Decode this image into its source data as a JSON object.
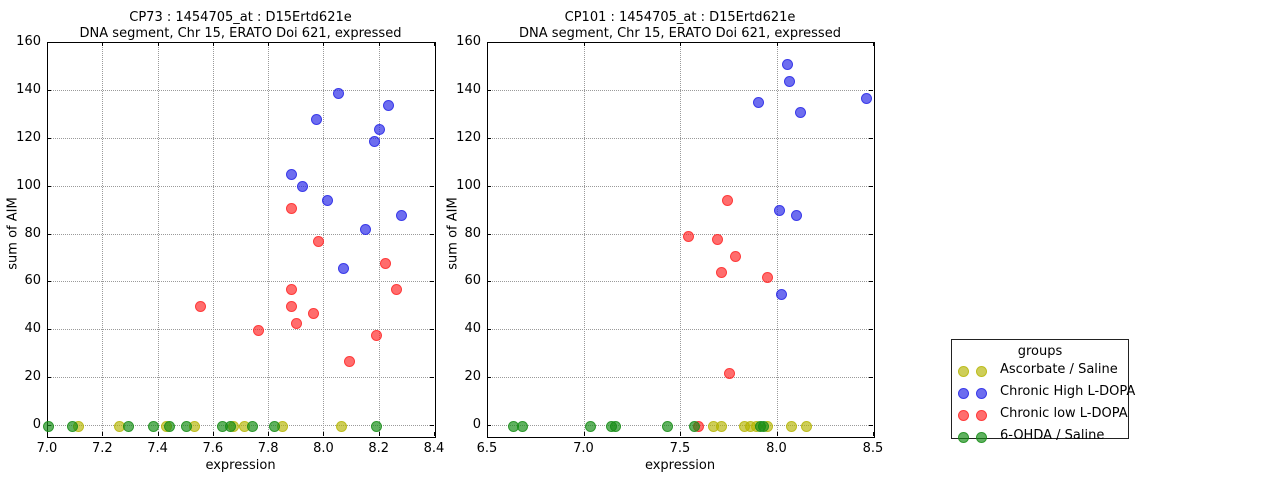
{
  "figure": {
    "background": "#ffffff"
  },
  "legend": {
    "title": "groups",
    "entries": [
      {
        "label": "Ascorbate / Saline",
        "color": "rgba(180,180,0,0.65)"
      },
      {
        "label": "Chronic High L-DOPA",
        "color": "rgba(30,30,230,0.65)"
      },
      {
        "label": "Chronic low L-DOPA",
        "color": "rgba(255,30,30,0.65)"
      },
      {
        "label": "6-OHDA / Saline",
        "color": "rgba(20,140,20,0.68)"
      }
    ]
  },
  "chart_data": [
    {
      "type": "scatter",
      "title_line1": "CP73 : 1454705_at : D15Ertd621e",
      "title_line2": "DNA segment, Chr 15, ERATO Doi 621, expressed",
      "xlabel": "expression",
      "ylabel": "sum of AIM",
      "xlim": [
        7.0,
        8.4
      ],
      "ylim": [
        0,
        160
      ],
      "xticks": [
        7.0,
        7.2,
        7.4,
        7.6,
        7.8,
        8.0,
        8.2,
        8.4
      ],
      "yticks": [
        0,
        20,
        40,
        60,
        80,
        100,
        120,
        140,
        160
      ],
      "grid": true,
      "series": [
        {
          "name": "Ascorbate / Saline",
          "color": "rgba(180,180,0,0.65)",
          "points": [
            [
              7.11,
              0
            ],
            [
              7.26,
              0
            ],
            [
              7.43,
              0
            ],
            [
              7.53,
              0
            ],
            [
              7.67,
              0
            ],
            [
              7.71,
              0
            ],
            [
              7.85,
              0
            ],
            [
              8.06,
              0
            ]
          ]
        },
        {
          "name": "Chronic High L-DOPA",
          "color": "rgba(30,30,230,0.65)",
          "points": [
            [
              7.88,
              105
            ],
            [
              7.92,
              100
            ],
            [
              7.97,
              128
            ],
            [
              8.01,
              94
            ],
            [
              8.05,
              139
            ],
            [
              8.07,
              66
            ],
            [
              8.15,
              82
            ],
            [
              8.18,
              119
            ],
            [
              8.2,
              124
            ],
            [
              8.23,
              134
            ],
            [
              8.28,
              88
            ]
          ]
        },
        {
          "name": "Chronic low L-DOPA",
          "color": "rgba(255,30,30,0.65)",
          "points": [
            [
              7.55,
              50
            ],
            [
              7.76,
              40
            ],
            [
              7.88,
              50
            ],
            [
              7.88,
              57
            ],
            [
              7.88,
              91
            ],
            [
              7.9,
              43
            ],
            [
              7.96,
              47
            ],
            [
              7.98,
              77
            ],
            [
              8.09,
              27
            ],
            [
              8.19,
              38
            ],
            [
              8.22,
              68
            ],
            [
              8.26,
              57
            ]
          ]
        },
        {
          "name": "6-OHDA / Saline",
          "color": "rgba(20,140,20,0.68)",
          "points": [
            [
              7.0,
              0
            ],
            [
              7.09,
              0
            ],
            [
              7.29,
              0
            ],
            [
              7.38,
              0
            ],
            [
              7.44,
              0
            ],
            [
              7.5,
              0
            ],
            [
              7.63,
              0
            ],
            [
              7.66,
              0
            ],
            [
              7.74,
              0
            ],
            [
              7.82,
              0
            ],
            [
              8.19,
              0
            ]
          ]
        }
      ]
    },
    {
      "type": "scatter",
      "title_line1": "CP101 : 1454705_at : D15Ertd621e",
      "title_line2": "DNA segment, Chr 15, ERATO Doi 621, expressed",
      "xlabel": "expression",
      "ylabel": "sum of AIM",
      "xlim": [
        6.5,
        8.5
      ],
      "ylim": [
        0,
        160
      ],
      "xticks": [
        6.5,
        7.0,
        7.5,
        8.0,
        8.5
      ],
      "yticks": [
        0,
        20,
        40,
        60,
        80,
        100,
        120,
        140,
        160
      ],
      "grid": true,
      "series": [
        {
          "name": "Ascorbate / Saline",
          "color": "rgba(180,180,0,0.65)",
          "points": [
            [
              7.67,
              0
            ],
            [
              7.71,
              0
            ],
            [
              7.83,
              0
            ],
            [
              7.86,
              0
            ],
            [
              7.89,
              0
            ],
            [
              7.95,
              0
            ],
            [
              8.07,
              0
            ],
            [
              8.15,
              0
            ]
          ]
        },
        {
          "name": "Chronic High L-DOPA",
          "color": "rgba(30,30,230,0.65)",
          "points": [
            [
              7.9,
              135
            ],
            [
              8.01,
              90
            ],
            [
              8.02,
              55
            ],
            [
              8.05,
              151
            ],
            [
              8.06,
              144
            ],
            [
              8.1,
              88
            ],
            [
              8.12,
              131
            ],
            [
              8.46,
              137
            ]
          ]
        },
        {
          "name": "Chronic low L-DOPA",
          "color": "rgba(255,30,30,0.65)",
          "points": [
            [
              7.54,
              79
            ],
            [
              7.59,
              0
            ],
            [
              7.69,
              78
            ],
            [
              7.71,
              64
            ],
            [
              7.74,
              94
            ],
            [
              7.75,
              22
            ],
            [
              7.78,
              71
            ],
            [
              7.95,
              62
            ]
          ]
        },
        {
          "name": "6-OHDA / Saline",
          "color": "rgba(20,140,20,0.68)",
          "points": [
            [
              6.63,
              0
            ],
            [
              6.68,
              0
            ],
            [
              7.03,
              0
            ],
            [
              7.14,
              0
            ],
            [
              7.16,
              0
            ],
            [
              7.43,
              0
            ],
            [
              7.57,
              0
            ],
            [
              7.91,
              0
            ],
            [
              7.93,
              0
            ]
          ]
        }
      ]
    }
  ]
}
